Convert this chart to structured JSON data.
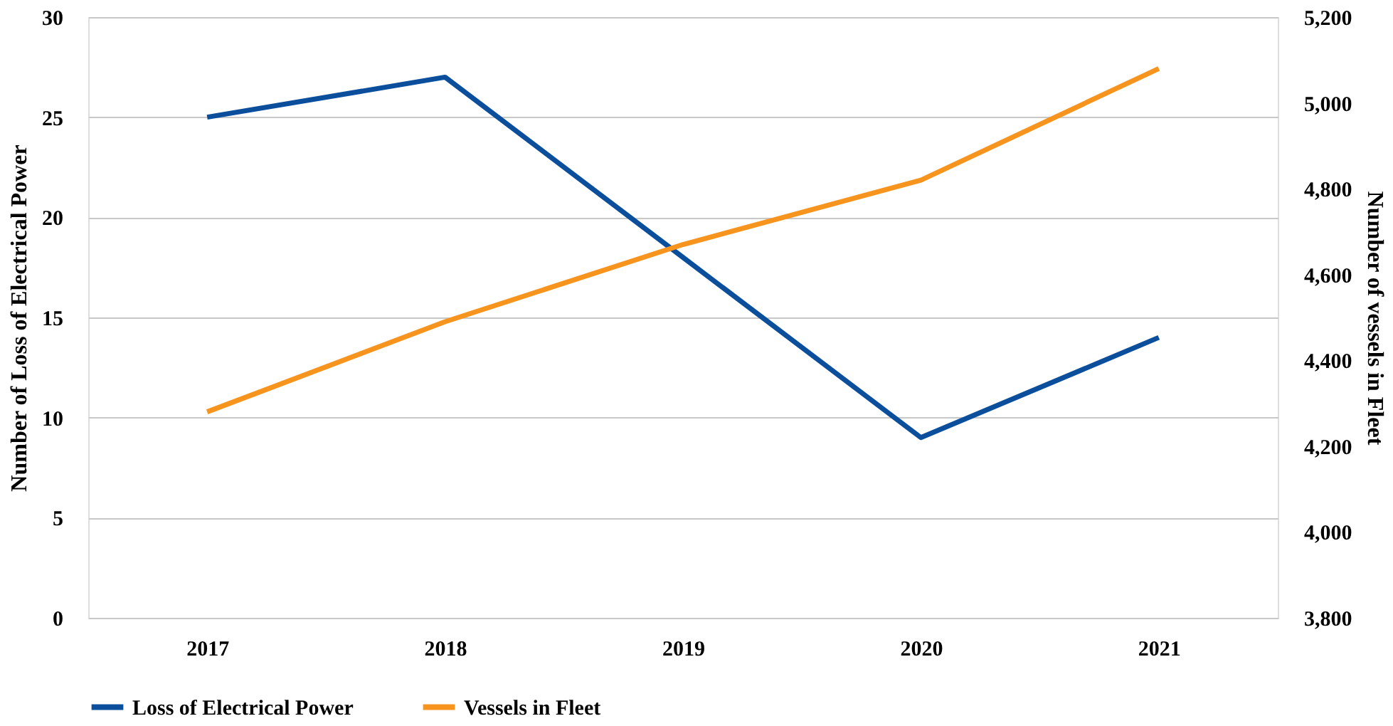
{
  "chart_data": {
    "type": "line",
    "categories": [
      "2017",
      "2018",
      "2019",
      "2020",
      "2021"
    ],
    "ylabel": "Number of Loss of Electrical Power",
    "y2label": "Number of vessels in Fleet",
    "ylim": [
      0,
      30
    ],
    "yticks": [
      0,
      5,
      10,
      15,
      20,
      25,
      30
    ],
    "y2lim": [
      3800,
      5200
    ],
    "y2ticks": [
      {
        "value": 3800,
        "label": "3,800"
      },
      {
        "value": 4000,
        "label": "4,000"
      },
      {
        "value": 4200,
        "label": "4,200"
      },
      {
        "value": 4400,
        "label": "4,400"
      },
      {
        "value": 4600,
        "label": "4,600"
      },
      {
        "value": 4800,
        "label": "4,800"
      },
      {
        "value": 5000,
        "label": "5,000"
      },
      {
        "value": 5200,
        "label": "5,200"
      }
    ],
    "grid": "y",
    "legend": "bottom",
    "marker": "none",
    "line_style": "solid",
    "series": [
      {
        "name": "Loss of Electrical Power",
        "color": "#0b4f9c",
        "values": [
          25,
          27,
          18,
          9,
          14
        ]
      },
      {
        "name": "Vessels in Fleet",
        "color": "#f7941d",
        "values": [
          4280,
          4490,
          4670,
          4820,
          5080
        ],
        "axis": "y2"
      }
    ]
  }
}
